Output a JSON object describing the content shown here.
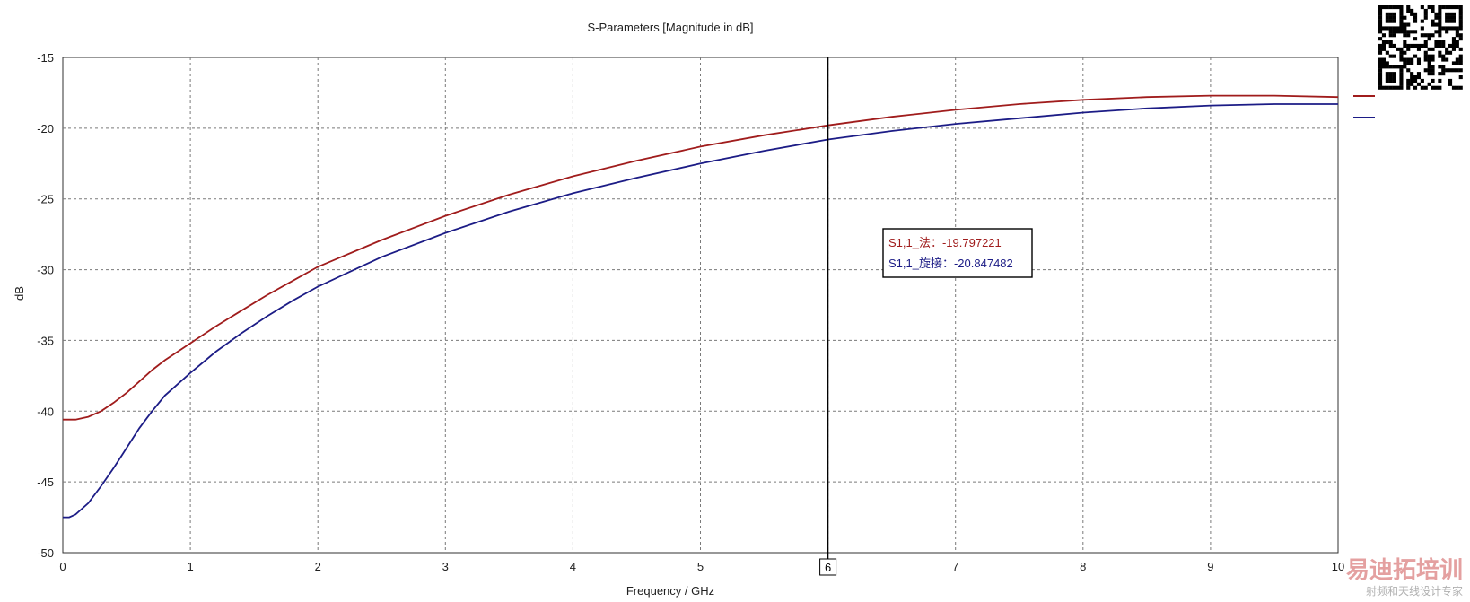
{
  "title": "S-Parameters [Magnitude in dB]",
  "colors": {
    "series_red": "#a01c1c",
    "series_blue": "#1c1c86",
    "grid": "#7a7a7a",
    "watermark": "#e4a0a0"
  },
  "marker": {
    "label": "6",
    "x": 6
  },
  "readout": {
    "lines": [
      {
        "text": "S1,1_法：-19.797221",
        "color": "#a01c1c"
      },
      {
        "text": "S1,1_旋接：-20.847482",
        "color": "#1c1c86"
      }
    ]
  },
  "watermark": {
    "main": "易迪拓培训",
    "sub": "射频和天线设计专家"
  },
  "chart_data": {
    "type": "line",
    "title": "S-Parameters [Magnitude in dB]",
    "xlabel": "Frequency / GHz",
    "ylabel": "dB",
    "xlim": [
      0,
      10
    ],
    "ylim": [
      -50,
      -15
    ],
    "xticks": [
      0,
      1,
      2,
      3,
      4,
      5,
      6,
      7,
      8,
      9,
      10
    ],
    "yticks": [
      -15,
      -20,
      -25,
      -30,
      -35,
      -40,
      -45,
      -50
    ],
    "grid": true,
    "legend": "top-right (line swatches only)",
    "series": [
      {
        "color": "#a01c1c",
        "x": [
          0,
          0.1,
          0.2,
          0.3,
          0.4,
          0.5,
          0.6,
          0.7,
          0.8,
          1.0,
          1.2,
          1.4,
          1.6,
          1.8,
          2.0,
          2.5,
          3.0,
          3.5,
          4.0,
          4.5,
          5.0,
          5.5,
          6.0,
          6.5,
          7.0,
          7.5,
          8.0,
          8.5,
          9.0,
          9.5,
          10.0
        ],
        "y": [
          -40.6,
          -40.6,
          -40.4,
          -40.0,
          -39.4,
          -38.7,
          -37.9,
          -37.1,
          -36.4,
          -35.2,
          -34.0,
          -32.9,
          -31.8,
          -30.8,
          -29.8,
          -27.9,
          -26.2,
          -24.7,
          -23.4,
          -22.3,
          -21.3,
          -20.5,
          -19.8,
          -19.2,
          -18.7,
          -18.3,
          -18.0,
          -17.8,
          -17.7,
          -17.7,
          -17.8
        ]
      },
      {
        "color": "#1c1c86",
        "x": [
          0,
          0.05,
          0.1,
          0.2,
          0.3,
          0.4,
          0.5,
          0.6,
          0.7,
          0.8,
          1.0,
          1.2,
          1.4,
          1.6,
          1.8,
          2.0,
          2.5,
          3.0,
          3.5,
          4.0,
          4.5,
          5.0,
          5.5,
          6.0,
          6.5,
          7.0,
          7.5,
          8.0,
          8.5,
          9.0,
          9.5,
          10.0
        ],
        "y": [
          -47.5,
          -47.5,
          -47.3,
          -46.5,
          -45.3,
          -44.0,
          -42.6,
          -41.2,
          -40.0,
          -38.9,
          -37.3,
          -35.8,
          -34.5,
          -33.3,
          -32.2,
          -31.2,
          -29.1,
          -27.4,
          -25.9,
          -24.6,
          -23.5,
          -22.5,
          -21.6,
          -20.8,
          -20.2,
          -19.7,
          -19.3,
          -18.9,
          -18.6,
          -18.4,
          -18.3,
          -18.3
        ]
      }
    ]
  }
}
